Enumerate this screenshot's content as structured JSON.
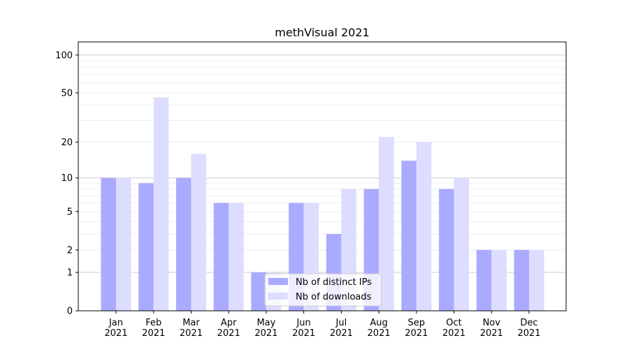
{
  "chart_data": {
    "type": "bar",
    "title": "methVisual 2021",
    "xlabel": "",
    "ylabel": "",
    "yscale": "symlog (log10(1+y))",
    "ylim": [
      0,
      120
    ],
    "yticks": [
      0,
      1,
      2,
      5,
      10,
      20,
      50,
      100
    ],
    "grid": true,
    "legend_position": "lower-center",
    "categories": [
      "Jan\n2021",
      "Feb\n2021",
      "Mar\n2021",
      "Apr\n2021",
      "May\n2021",
      "Jun\n2021",
      "Jul\n2021",
      "Aug\n2021",
      "Sep\n2021",
      "Oct\n2021",
      "Nov\n2021",
      "Dec\n2021"
    ],
    "series": [
      {
        "name": "Nb of distinct IPs",
        "color": "#aaaaff",
        "values": [
          10,
          9,
          10,
          6,
          1,
          6,
          3,
          8,
          14,
          8,
          2,
          2
        ]
      },
      {
        "name": "Nb of downloads",
        "color": "#ddddff",
        "values": [
          10,
          46,
          16,
          6,
          1,
          6,
          8,
          22,
          20,
          10,
          2,
          2
        ]
      }
    ]
  }
}
